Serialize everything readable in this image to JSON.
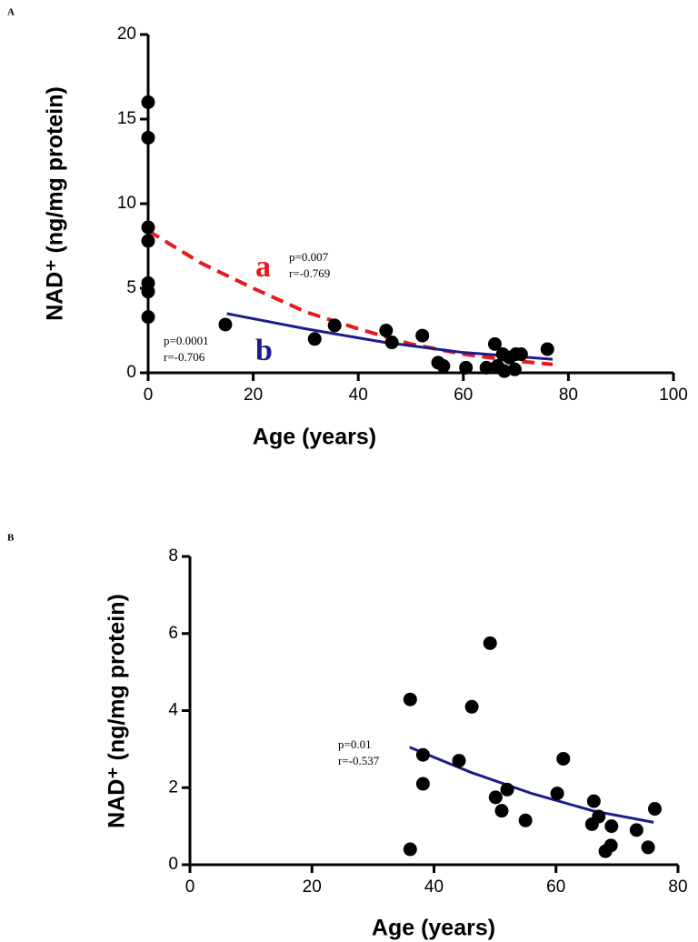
{
  "chart_data": [
    {
      "type": "scatter",
      "panel_label": "A",
      "x_label": "Age (years)",
      "y_label": "NAD⁺ (ng/mg protein)",
      "xlim": [
        0,
        100
      ],
      "ylim": [
        0,
        20
      ],
      "xticks": [
        0,
        20,
        40,
        60,
        80,
        100
      ],
      "yticks": [
        0,
        5,
        10,
        15,
        20
      ],
      "series": [
        {
          "mark": "point",
          "color": "#000000",
          "x": [
            0,
            0,
            0,
            0,
            0,
            0,
            0,
            14.7,
            31.7,
            35.5,
            45.3,
            46.4,
            52.2,
            55.2,
            56.2,
            60.5,
            64.4,
            66,
            66.5,
            67.5,
            67.8,
            68.8,
            69.8,
            70,
            71,
            76
          ],
          "values": [
            16.0,
            13.9,
            8.6,
            7.8,
            5.3,
            4.8,
            3.3,
            2.85,
            2.0,
            2.8,
            2.5,
            1.8,
            2.2,
            0.6,
            0.4,
            0.3,
            0.3,
            1.7,
            0.4,
            1.1,
            0.1,
            0.9,
            0.2,
            1.1,
            1.1,
            1.4
          ]
        },
        {
          "mark": "line",
          "name": "a",
          "color": "#e8191a",
          "dash": true,
          "p": "p=0.007",
          "r": "r=-0.769",
          "x": [
            0,
            10,
            20,
            30,
            40,
            50,
            60,
            70,
            77
          ],
          "values": [
            8.4,
            6.5,
            5.0,
            3.6,
            2.6,
            1.7,
            1.1,
            0.7,
            0.5
          ]
        },
        {
          "mark": "line",
          "name": "b",
          "color": "#1c1c8a",
          "dash": false,
          "p": "p=0.0001",
          "r": "r=-0.706",
          "x": [
            15,
            30,
            45,
            60,
            77
          ],
          "values": [
            3.5,
            2.6,
            1.8,
            1.2,
            0.8
          ]
        }
      ]
    },
    {
      "type": "scatter",
      "panel_label": "B",
      "x_label": "Age (years)",
      "y_label": "NAD⁺ (ng/mg protein)",
      "xlim": [
        0,
        80
      ],
      "ylim": [
        0,
        8
      ],
      "xticks": [
        0,
        20,
        40,
        60,
        80
      ],
      "yticks": [
        0,
        2,
        4,
        6,
        8
      ],
      "series": [
        {
          "mark": "point",
          "color": "#000000",
          "x": [
            36.1,
            36.1,
            38.2,
            38.2,
            44.1,
            46.2,
            49.2,
            50.1,
            51.1,
            52,
            55,
            60.2,
            61.2,
            66.2,
            65.9,
            67,
            68.1,
            69,
            69.1,
            73.2,
            75.1,
            76.2
          ],
          "values": [
            4.29,
            0.4,
            2.85,
            2.1,
            2.7,
            4.1,
            5.75,
            1.75,
            1.4,
            1.95,
            1.15,
            1.85,
            2.75,
            1.65,
            1.05,
            1.25,
            0.35,
            0.5,
            1.0,
            0.9,
            0.45,
            1.45
          ]
        },
        {
          "mark": "line",
          "color": "#1c1c8a",
          "dash": false,
          "p": "p=0.01",
          "r": "r=-0.537",
          "x": [
            36,
            46,
            56,
            66,
            76
          ],
          "values": [
            3.05,
            2.4,
            1.85,
            1.4,
            1.1
          ]
        }
      ]
    }
  ]
}
